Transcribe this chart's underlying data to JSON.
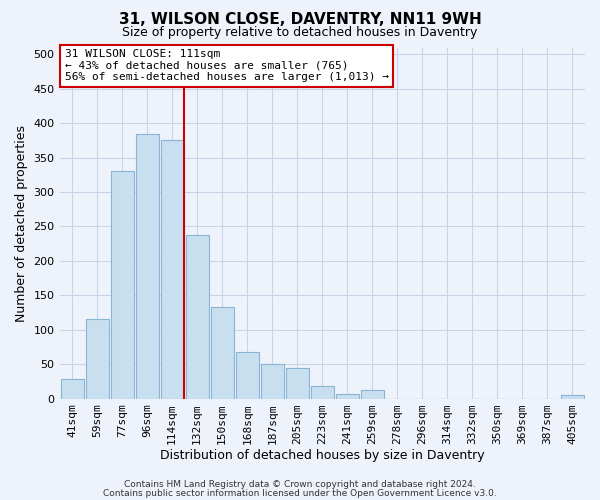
{
  "title_line1": "31, WILSON CLOSE, DAVENTRY, NN11 9WH",
  "title_line2": "Size of property relative to detached houses in Daventry",
  "xlabel": "Distribution of detached houses by size in Daventry",
  "ylabel": "Number of detached properties",
  "categories": [
    "41sqm",
    "59sqm",
    "77sqm",
    "96sqm",
    "114sqm",
    "132sqm",
    "150sqm",
    "168sqm",
    "187sqm",
    "205sqm",
    "223sqm",
    "241sqm",
    "259sqm",
    "278sqm",
    "296sqm",
    "314sqm",
    "332sqm",
    "350sqm",
    "369sqm",
    "387sqm",
    "405sqm"
  ],
  "values": [
    28,
    116,
    330,
    385,
    375,
    237,
    133,
    68,
    50,
    45,
    19,
    6,
    13,
    0,
    0,
    0,
    0,
    0,
    0,
    0,
    5
  ],
  "bar_color": "#c8dff0",
  "bar_edge_color": "#8ab4d4",
  "highlight_index": 4,
  "highlight_line_color": "#cc0000",
  "annotation_text": "31 WILSON CLOSE: 111sqm\n← 43% of detached houses are smaller (765)\n56% of semi-detached houses are larger (1,013) →",
  "annotation_box_facecolor": "#ffffff",
  "annotation_box_edgecolor": "#cc0000",
  "ylim": [
    0,
    510
  ],
  "yticks": [
    0,
    50,
    100,
    150,
    200,
    250,
    300,
    350,
    400,
    450,
    500
  ],
  "footnote_line1": "Contains HM Land Registry data © Crown copyright and database right 2024.",
  "footnote_line2": "Contains public sector information licensed under the Open Government Licence v3.0.",
  "grid_color": "#c8d4e8",
  "background_color": "#eef2fb",
  "title_fontsize": 11,
  "subtitle_fontsize": 9,
  "axis_label_fontsize": 9,
  "tick_fontsize": 8,
  "annotation_fontsize": 8,
  "footnote_fontsize": 6.5
}
